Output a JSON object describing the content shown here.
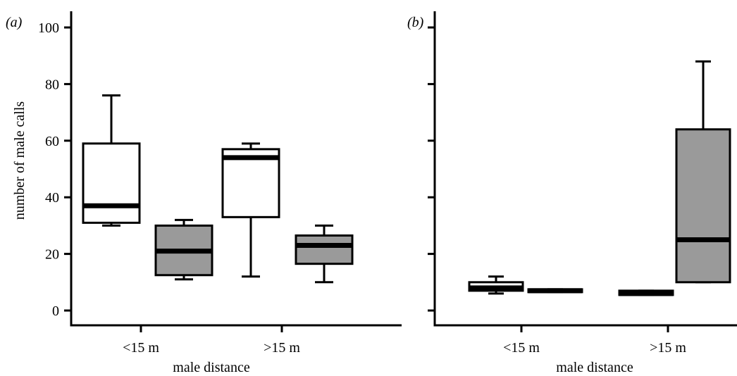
{
  "figure": {
    "ylabel": "number of male calls"
  },
  "chart_data": [
    {
      "type": "box",
      "panel_label": "(a)",
      "xlabel": "male distance",
      "ylabel": "number of male calls",
      "categories": [
        "<15 m",
        ">15 m"
      ],
      "ylim": [
        -5,
        105
      ],
      "yticks": [
        0,
        20,
        40,
        60,
        80,
        100
      ],
      "grid": false,
      "series": [
        {
          "fill": "#ffffff",
          "boxes": [
            {
              "category": "<15 m",
              "min": 30,
              "q1": 31,
              "median": 37,
              "q3": 59,
              "max": 76
            },
            {
              "category": ">15 m",
              "min": 12,
              "q1": 33,
              "median": 54,
              "q3": 57,
              "max": 59
            }
          ]
        },
        {
          "fill": "#9a9a9a",
          "boxes": [
            {
              "category": "<15 m",
              "min": 11,
              "q1": 12.5,
              "median": 21,
              "q3": 30,
              "max": 32
            },
            {
              "category": ">15 m",
              "min": 10,
              "q1": 16.5,
              "median": 23,
              "q3": 26.5,
              "max": 30
            }
          ]
        }
      ]
    },
    {
      "type": "box",
      "panel_label": "(b)",
      "xlabel": "male distance",
      "categories": [
        "<15 m",
        ">15 m"
      ],
      "ylim": [
        -5,
        105
      ],
      "yticks": [
        0,
        20,
        40,
        60,
        80,
        100
      ],
      "grid": false,
      "series": [
        {
          "fill": "#ffffff",
          "boxes": [
            {
              "category": "<15 m",
              "min": 6,
              "q1": 7,
              "median": 8,
              "q3": 10,
              "max": 12
            },
            {
              "category": ">15 m",
              "min": 5.5,
              "q1": 5.5,
              "median": 6,
              "q3": 7,
              "max": 7
            }
          ]
        },
        {
          "fill": "#9a9a9a",
          "boxes": [
            {
              "category": "<15 m",
              "min": 6.5,
              "q1": 6.5,
              "median": 7,
              "q3": 7.5,
              "max": 7.5
            },
            {
              "category": ">15 m",
              "min": 10,
              "q1": 10,
              "median": 25,
              "q3": 64,
              "max": 88
            }
          ]
        }
      ]
    }
  ]
}
